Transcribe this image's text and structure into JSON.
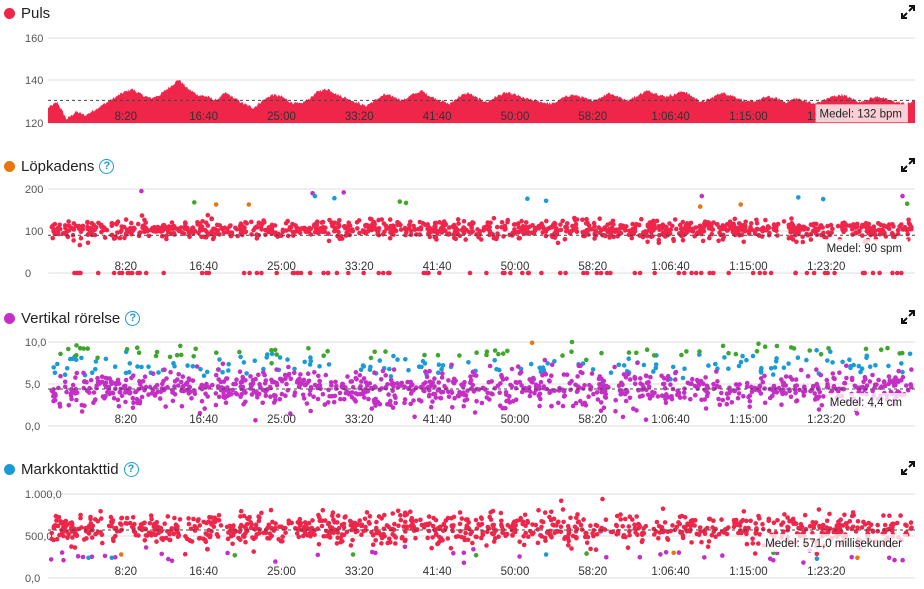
{
  "x_ticks": [
    "8:20",
    "16:40",
    "25:00",
    "33:20",
    "41:40",
    "50:00",
    "58:20",
    "1:06:40",
    "1:15:00",
    "1:23:20"
  ],
  "chart_data": [
    {
      "type": "area",
      "title": "Puls",
      "color": "#f0254a",
      "help": false,
      "y_ticks": [
        "160",
        "140",
        "120"
      ],
      "ylim": [
        120,
        165
      ],
      "x_unit": "seconds",
      "xlim": [
        0,
        5570
      ],
      "average_value": 132,
      "average_label": "Medel: 132 bpm",
      "x": [
        0,
        60,
        120,
        180,
        240,
        300,
        360,
        420,
        480,
        540,
        600,
        660,
        720,
        780,
        840,
        900,
        960,
        1020,
        1080,
        1140,
        1200,
        1260,
        1320,
        1380,
        1440,
        1500,
        1560,
        1620,
        1680,
        1740,
        1800,
        1860,
        1920,
        1980,
        2040,
        2100,
        2160,
        2220,
        2280,
        2340,
        2400,
        2460,
        2520,
        2580,
        2640,
        2700,
        2760,
        2820,
        2880,
        2940,
        3000,
        3060,
        3120,
        3180,
        3240,
        3300,
        3360,
        3420,
        3480,
        3540,
        3600,
        3660,
        3720,
        3780,
        3840,
        3900,
        3960,
        4020,
        4080,
        4140,
        4200,
        4260,
        4320,
        4380,
        4440,
        4500,
        4560,
        4620,
        4680,
        4740,
        4800,
        4860,
        4920,
        4980,
        5040,
        5100,
        5160,
        5220,
        5280,
        5340,
        5400,
        5460,
        5520,
        5570
      ],
      "y": [
        128,
        131,
        122,
        126,
        124,
        127,
        130,
        133,
        136,
        138,
        135,
        133,
        135,
        139,
        143,
        138,
        135,
        134,
        132,
        136,
        133,
        130,
        128,
        132,
        135,
        134,
        131,
        130,
        133,
        137,
        138,
        135,
        133,
        131,
        129,
        132,
        135,
        134,
        132,
        135,
        137,
        134,
        132,
        130,
        134,
        136,
        133,
        131,
        134,
        136,
        135,
        133,
        132,
        131,
        130,
        133,
        135,
        134,
        132,
        133,
        136,
        134,
        132,
        134,
        137,
        136,
        134,
        135,
        137,
        134,
        131,
        133,
        136,
        135,
        133,
        131,
        132,
        134,
        133,
        131,
        133,
        132,
        130,
        132,
        134,
        135,
        133,
        131,
        133,
        134,
        132,
        131,
        130,
        132
      ]
    },
    {
      "type": "scatter",
      "title": "Löpkadens",
      "color": "#e8760a",
      "help": true,
      "y_ticks": [
        "200",
        "100",
        "0"
      ],
      "ylim": [
        0,
        200
      ],
      "average_value": 90,
      "average_label": "Medel: 90 spm",
      "points": {
        "n": 1100,
        "main_mean": 103,
        "main_spread": 11,
        "main_color": "#f0254a",
        "zero_band": 0
      },
      "outliers": [
        {
          "x": 600,
          "y": 195,
          "c": "#c52fc6"
        },
        {
          "x": 940,
          "y": 168,
          "c": "#3fa52c"
        },
        {
          "x": 1080,
          "y": 163,
          "c": "#e8760a"
        },
        {
          "x": 1290,
          "y": 163,
          "c": "#e8760a"
        },
        {
          "x": 1700,
          "y": 190,
          "c": "#c52fc6"
        },
        {
          "x": 1715,
          "y": 183,
          "c": "#1a9bd7"
        },
        {
          "x": 1840,
          "y": 178,
          "c": "#1a9bd7"
        },
        {
          "x": 1900,
          "y": 192,
          "c": "#c52fc6"
        },
        {
          "x": 2260,
          "y": 170,
          "c": "#3fa52c"
        },
        {
          "x": 2300,
          "y": 167,
          "c": "#3fa52c"
        },
        {
          "x": 3080,
          "y": 177,
          "c": "#1a9bd7"
        },
        {
          "x": 3200,
          "y": 172,
          "c": "#1a9bd7"
        },
        {
          "x": 4200,
          "y": 183,
          "c": "#c52fc6"
        },
        {
          "x": 4190,
          "y": 158,
          "c": "#e8760a"
        },
        {
          "x": 4450,
          "y": 163,
          "c": "#e8760a"
        },
        {
          "x": 4820,
          "y": 180,
          "c": "#1a9bd7"
        },
        {
          "x": 4980,
          "y": 176,
          "c": "#1a9bd7"
        },
        {
          "x": 5490,
          "y": 183,
          "c": "#c52fc6"
        },
        {
          "x": 5520,
          "y": 165,
          "c": "#3fa52c"
        }
      ]
    },
    {
      "type": "scatter",
      "title": "Vertikal rörelse",
      "color": "#c52fc6",
      "help": true,
      "y_ticks": [
        "10,0",
        "5,0",
        "0,0"
      ],
      "ylim": [
        0,
        10
      ],
      "average_value": 4.4,
      "average_label": "Medel: 4,4 cm",
      "points": {
        "n": 1000,
        "main_mean": 4.4,
        "main_spread": 1.1,
        "main_color": "#c52fc6",
        "upper_n": 160,
        "upper_mean": 7.2,
        "upper_spread": 0.7,
        "upper_color": "#1a9bd7",
        "top_n": 70,
        "top_mean": 8.7,
        "top_spread": 0.5,
        "top_color": "#3fa52c"
      },
      "outliers": [
        {
          "x": 3110,
          "y": 9.9,
          "c": "#e8760a"
        }
      ]
    },
    {
      "type": "scatter",
      "title": "Markkontakttid",
      "color": "#1a9bd7",
      "help": true,
      "y_ticks": [
        "1.000,0",
        "500,0",
        "0,0"
      ],
      "ylim": [
        0,
        1000
      ],
      "average_value": 571,
      "average_label": "Medel: 571,0 millisekunder",
      "points": {
        "n": 1000,
        "main_mean": 580,
        "main_spread": 95,
        "main_color": "#f0254a",
        "low_n": 40,
        "low_mean": 250,
        "low_spread": 60,
        "low_color": "#c52fc6"
      },
      "outliers": [
        {
          "x": 260,
          "y": 240,
          "c": "#1a9bd7"
        },
        {
          "x": 410,
          "y": 240,
          "c": "#1a9bd7"
        },
        {
          "x": 470,
          "y": 280,
          "c": "#e8760a"
        },
        {
          "x": 1200,
          "y": 270,
          "c": "#3fa52c"
        },
        {
          "x": 1960,
          "y": 280,
          "c": "#3fa52c"
        },
        {
          "x": 2750,
          "y": 270,
          "c": "#3fa52c"
        },
        {
          "x": 3200,
          "y": 280,
          "c": "#1a9bd7"
        },
        {
          "x": 3460,
          "y": 290,
          "c": "#3fa52c"
        },
        {
          "x": 4020,
          "y": 300,
          "c": "#e8760a"
        },
        {
          "x": 4660,
          "y": 300,
          "c": "#3fa52c"
        },
        {
          "x": 4940,
          "y": 230,
          "c": "#1a9bd7"
        },
        {
          "x": 5200,
          "y": 240,
          "c": "#e8760a"
        }
      ]
    }
  ]
}
